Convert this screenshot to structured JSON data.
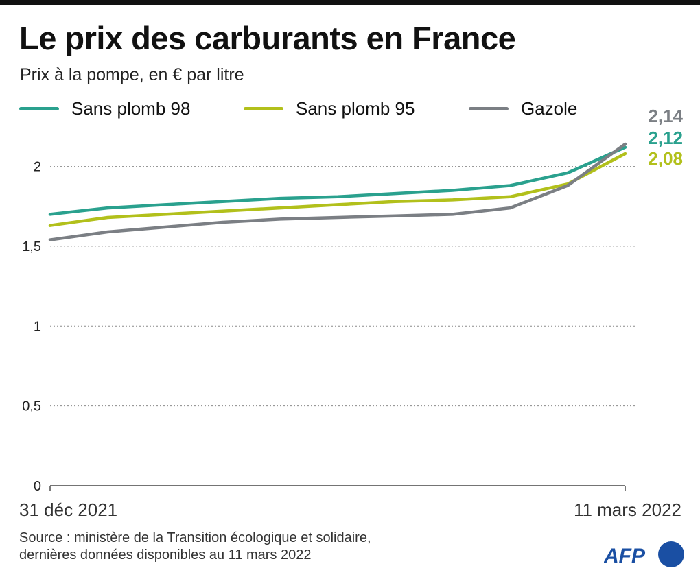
{
  "title": "Le prix des carburants en France",
  "subtitle": "Prix à la pompe, en € par litre",
  "source": {
    "line1": "Source : ministère de la Transition écologique et solidaire,",
    "line2": "dernières données disponibles au 11 mars 2022"
  },
  "logo": {
    "text": "AFP",
    "color": "#1a4fa3"
  },
  "chart_data": {
    "type": "line",
    "x_labels": [
      "31 déc 2021",
      "11 mars 2022"
    ],
    "ylim": [
      0,
      2.14
    ],
    "yticks": [
      {
        "value": 0,
        "label": "0"
      },
      {
        "value": 0.5,
        "label": "0,5"
      },
      {
        "value": 1,
        "label": "1"
      },
      {
        "value": 1.5,
        "label": "1,5"
      },
      {
        "value": 2,
        "label": "2"
      }
    ],
    "grid": true,
    "legend_position": "top",
    "x": [
      "2021-12-31",
      "2022-01-07",
      "2022-01-14",
      "2022-01-21",
      "2022-01-28",
      "2022-02-04",
      "2022-02-11",
      "2022-02-18",
      "2022-02-25",
      "2022-03-04",
      "2022-03-11"
    ],
    "series": [
      {
        "name": "Sans plomb 98",
        "color": "#2aa18e",
        "end_label": "2,12",
        "values": [
          1.7,
          1.74,
          1.76,
          1.78,
          1.8,
          1.81,
          1.83,
          1.85,
          1.88,
          1.96,
          2.12
        ]
      },
      {
        "name": "Sans plomb 95",
        "color": "#b2c01b",
        "end_label": "2,08",
        "values": [
          1.63,
          1.68,
          1.7,
          1.72,
          1.74,
          1.76,
          1.78,
          1.79,
          1.81,
          1.89,
          2.08
        ]
      },
      {
        "name": "Gazole",
        "color": "#7b7f84",
        "end_label": "2,14",
        "values": [
          1.54,
          1.59,
          1.62,
          1.65,
          1.67,
          1.68,
          1.69,
          1.7,
          1.74,
          1.88,
          2.14
        ]
      }
    ]
  }
}
